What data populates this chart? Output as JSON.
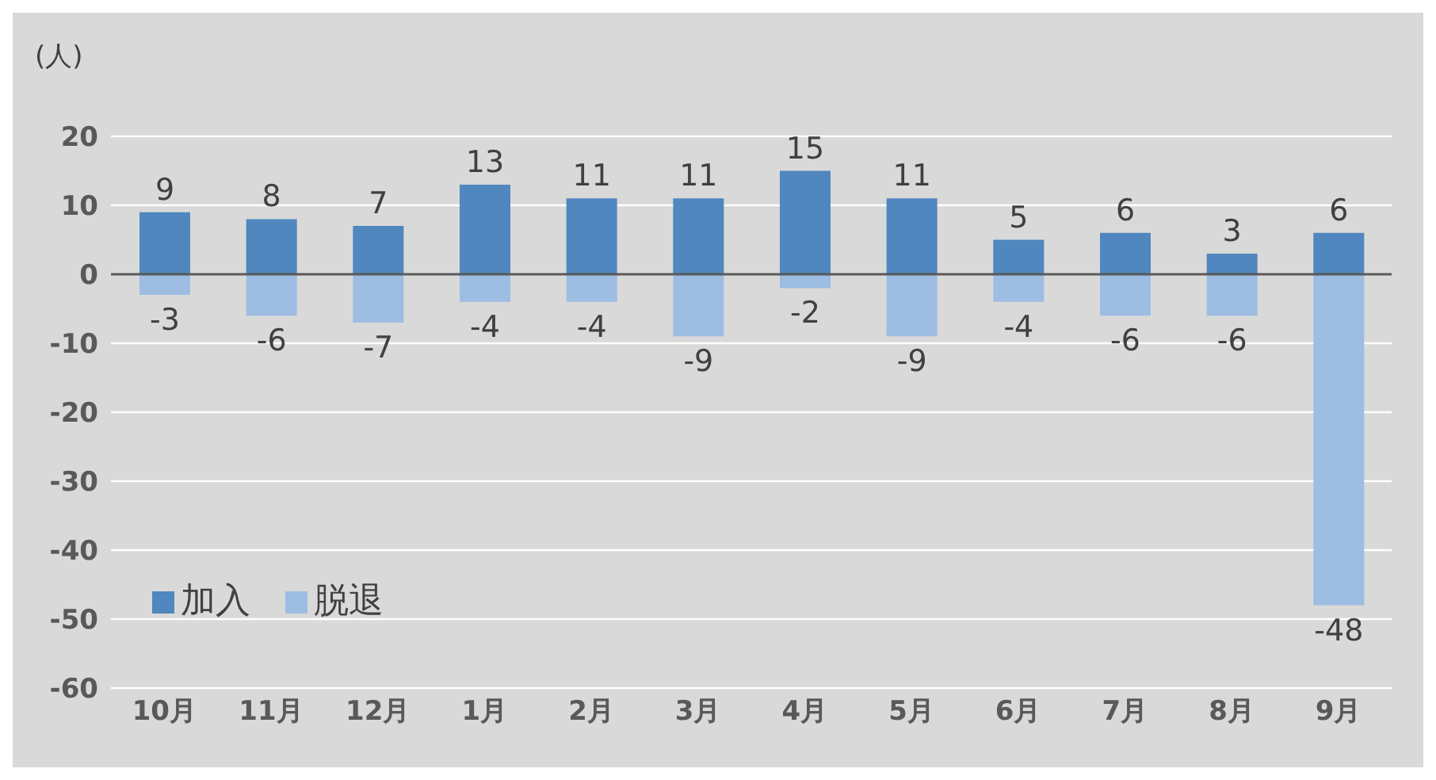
{
  "chart_data": {
    "type": "bar",
    "ylabel": "(人)",
    "categories": [
      "10月",
      "11月",
      "12月",
      "1月",
      "2月",
      "3月",
      "4月",
      "5月",
      "6月",
      "7月",
      "8月",
      "9月"
    ],
    "series": [
      {
        "name": "加入",
        "color": "#4f87be",
        "values": [
          9,
          8,
          7,
          13,
          11,
          11,
          15,
          11,
          5,
          6,
          3,
          6
        ]
      },
      {
        "name": "脱退",
        "color": "#9dbde3",
        "values": [
          -3,
          -6,
          -7,
          -4,
          -4,
          -9,
          -2,
          -9,
          -4,
          -6,
          -6,
          -48
        ]
      }
    ],
    "stacked": true,
    "ylim": [
      -60,
      20
    ],
    "yticks": [
      -60,
      -50,
      -40,
      -30,
      -20,
      -10,
      0,
      10,
      20
    ],
    "grid": "y",
    "legend": "bottom left",
    "data_labels": true,
    "ref_lines": [
      {
        "axis": "y",
        "value": 0,
        "color": "#595959"
      }
    ]
  }
}
